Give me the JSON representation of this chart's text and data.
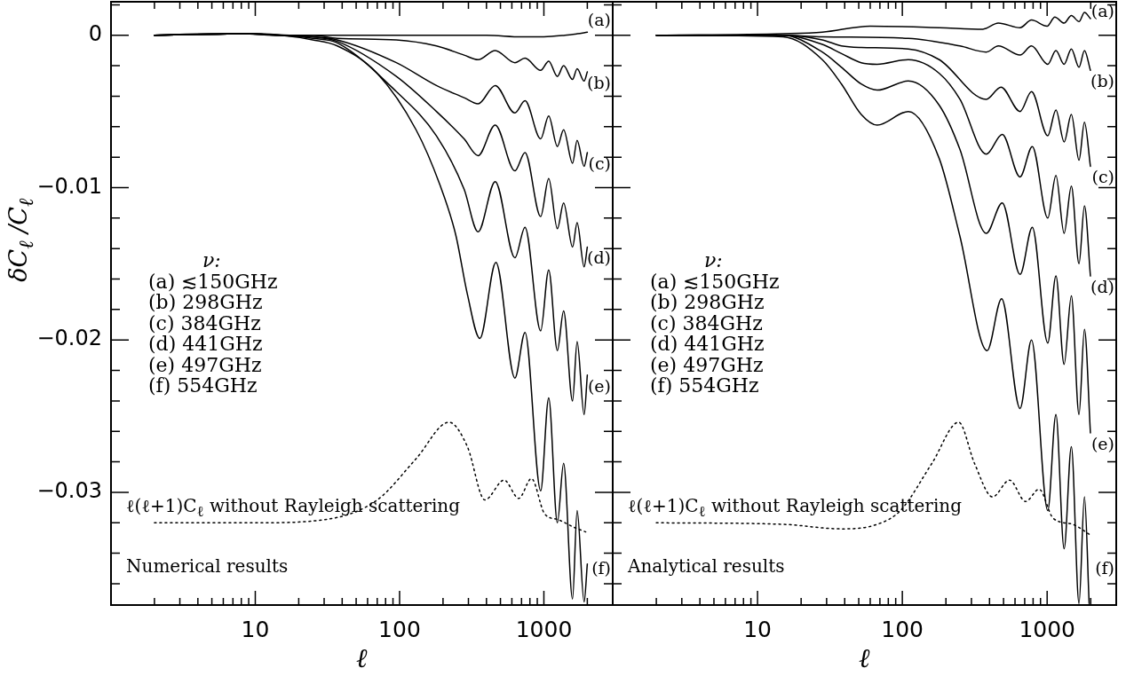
{
  "chart_data": [
    {
      "type": "line",
      "xlabel": "ℓ",
      "ylabel": "δC$_{ℓ}$ /C$_{ℓ}$",
      "legend": "right",
      "log": "x",
      "grid": false,
      "marker": "none",
      "xlim": [
        1,
        3000
      ],
      "ylim": [
        -0.0374,
        0.0022
      ],
      "xticks": [
        {
          "value": 2,
          "label": null
        },
        {
          "value": 3,
          "label": null
        },
        {
          "value": 4,
          "label": null
        },
        {
          "value": 5,
          "label": null
        },
        {
          "value": 6,
          "label": null
        },
        {
          "value": 7,
          "label": null
        },
        {
          "value": 8,
          "label": null
        },
        {
          "value": 9,
          "label": null
        },
        10,
        {
          "value": 20,
          "label": null
        },
        {
          "value": 30,
          "label": null
        },
        {
          "value": 40,
          "label": null
        },
        {
          "value": 50,
          "label": null
        },
        {
          "value": 60,
          "label": null
        },
        {
          "value": 70,
          "label": null
        },
        {
          "value": 80,
          "label": null
        },
        {
          "value": 90,
          "label": null
        },
        100,
        {
          "value": 200,
          "label": null
        },
        {
          "value": 300,
          "label": null
        },
        {
          "value": 400,
          "label": null
        },
        {
          "value": 500,
          "label": null
        },
        {
          "value": 600,
          "label": null
        },
        {
          "value": 700,
          "label": null
        },
        {
          "value": 800,
          "label": null
        },
        {
          "value": 900,
          "label": null
        },
        1000,
        {
          "value": 2000,
          "label": null
        },
        {
          "value": 3000,
          "label": null
        }
      ],
      "yticks": [
        {
          "value": 0.002,
          "label": null
        },
        0,
        {
          "value": -0.002,
          "label": null
        },
        {
          "value": -0.004,
          "label": null
        },
        {
          "value": -0.006,
          "label": null
        },
        {
          "value": -0.008,
          "label": null
        },
        -0.01,
        {
          "value": -0.012,
          "label": null
        },
        {
          "value": -0.014,
          "label": null
        },
        {
          "value": -0.016,
          "label": null
        },
        {
          "value": -0.018,
          "label": null
        },
        -0.02,
        {
          "value": -0.022,
          "label": null
        },
        {
          "value": -0.024,
          "label": null
        },
        {
          "value": -0.026,
          "label": null
        },
        {
          "value": -0.028,
          "label": null
        },
        -0.03,
        {
          "value": -0.032,
          "label": null
        },
        {
          "value": -0.034,
          "label": null
        },
        {
          "value": -0.036,
          "label": null
        }
      ],
      "series": [
        {
          "name": "(a)",
          "color": "#000000",
          "x": [
            2,
            5,
            10,
            20,
            50,
            100,
            200,
            400,
            700,
            1000,
            1400,
            1700,
            2000
          ],
          "values": [
            0,
            0.0001,
            0.0001,
            0,
            0,
            0,
            0,
            0,
            -0.0001,
            -0.0001,
            0,
            0.0001,
            0.0002
          ]
        },
        {
          "name": "(b)",
          "color": "#000000",
          "x": [
            2,
            8,
            15,
            25,
            37,
            95,
            180,
            280,
            350,
            460,
            630,
            740,
            950,
            1080,
            1240,
            1370,
            1580,
            1700,
            1900,
            2000
          ],
          "values": [
            0,
            0.0001,
            0,
            0,
            -0.0002,
            -0.0003,
            -0.0007,
            -0.0013,
            -0.0016,
            -0.001,
            -0.0018,
            -0.0015,
            -0.0023,
            -0.0017,
            -0.0027,
            -0.002,
            -0.0029,
            -0.0022,
            -0.003,
            -0.0024
          ]
        },
        {
          "name": "(c)",
          "color": "#000000",
          "x": [
            2,
            8,
            15,
            25,
            37,
            95,
            180,
            280,
            350,
            460,
            630,
            740,
            950,
            1080,
            1240,
            1370,
            1580,
            1700,
            1900,
            2000
          ],
          "values": [
            0,
            0.0001,
            0,
            -0.0001,
            -0.0003,
            -0.0018,
            -0.0033,
            -0.0041,
            -0.0045,
            -0.0033,
            -0.0051,
            -0.0043,
            -0.0068,
            -0.0053,
            -0.0073,
            -0.0062,
            -0.0084,
            -0.0069,
            -0.0086,
            -0.0077
          ]
        },
        {
          "name": "(d)",
          "color": "#000000",
          "x": [
            2,
            8,
            15,
            25,
            37,
            95,
            180,
            280,
            350,
            460,
            630,
            740,
            950,
            1080,
            1240,
            1370,
            1580,
            1700,
            1900,
            2000
          ],
          "values": [
            0,
            0.0001,
            0,
            -0.0001,
            -0.0004,
            -0.0027,
            -0.005,
            -0.0068,
            -0.0079,
            -0.0059,
            -0.0089,
            -0.0077,
            -0.0119,
            -0.0094,
            -0.0127,
            -0.011,
            -0.0139,
            -0.0123,
            -0.0152,
            -0.0139
          ]
        },
        {
          "name": "(e)",
          "color": "#000000",
          "x": [
            2,
            8,
            15,
            25,
            37,
            95,
            180,
            280,
            350,
            460,
            630,
            740,
            950,
            1080,
            1240,
            1370,
            1580,
            1700,
            1900,
            2000
          ],
          "values": [
            0,
            0.0001,
            0,
            -0.0002,
            -0.0005,
            -0.0037,
            -0.0066,
            -0.0101,
            -0.0129,
            -0.0096,
            -0.0146,
            -0.0126,
            -0.0194,
            -0.0154,
            -0.0207,
            -0.0181,
            -0.024,
            -0.0201,
            -0.0249,
            -0.0223
          ]
        },
        {
          "name": "(f)",
          "color": "#000000",
          "x": [
            2,
            8,
            15,
            25,
            37,
            70,
            130,
            190,
            245,
            295,
            360,
            465,
            630,
            740,
            950,
            1080,
            1240,
            1370,
            1580,
            1700,
            1900,
            2000
          ],
          "values": [
            0,
            0.0001,
            0,
            -0.0003,
            -0.0007,
            -0.0025,
            -0.0062,
            -0.0098,
            -0.0131,
            -0.017,
            -0.0199,
            -0.0149,
            -0.0225,
            -0.0195,
            -0.0299,
            -0.0238,
            -0.032,
            -0.0281,
            -0.037,
            -0.0312,
            -0.0372,
            -0.0347
          ]
        },
        {
          "color": "#000000",
          "line_style": "dotted",
          "x": [
            2,
            10,
            30,
            70,
            130,
            220,
            295,
            390,
            530,
            670,
            820,
            1010,
            1260,
            1620,
            1950
          ],
          "values": [
            -0.032,
            -0.032,
            -0.0318,
            -0.0305,
            -0.0278,
            -0.0254,
            -0.027,
            -0.0305,
            -0.0292,
            -0.0304,
            -0.0291,
            -0.0314,
            -0.0318,
            -0.0323,
            -0.0326
          ]
        }
      ],
      "annotations": [
        "ν:",
        "(a) ≲150GHz",
        "(b) 298GHz",
        "(c) 384GHz",
        "(d) 441GHz",
        "(e) 497GHz",
        "(f) 554GHz",
        "ℓ(ℓ+1)C$_{ℓ}$ without Rayleigh scattering",
        "Numerical results"
      ]
    },
    {
      "type": "line",
      "xlabel": "ℓ",
      "legend": "right",
      "log": "x",
      "grid": false,
      "marker": "none",
      "tick_labels": "x",
      "xlim": [
        1,
        3000
      ],
      "ylim": [
        -0.0374,
        0.0022
      ],
      "xticks": [
        {
          "value": 2,
          "label": null
        },
        {
          "value": 3,
          "label": null
        },
        {
          "value": 4,
          "label": null
        },
        {
          "value": 5,
          "label": null
        },
        {
          "value": 6,
          "label": null
        },
        {
          "value": 7,
          "label": null
        },
        {
          "value": 8,
          "label": null
        },
        {
          "value": 9,
          "label": null
        },
        10,
        {
          "value": 20,
          "label": null
        },
        {
          "value": 30,
          "label": null
        },
        {
          "value": 40,
          "label": null
        },
        {
          "value": 50,
          "label": null
        },
        {
          "value": 60,
          "label": null
        },
        {
          "value": 70,
          "label": null
        },
        {
          "value": 80,
          "label": null
        },
        {
          "value": 90,
          "label": null
        },
        100,
        {
          "value": 200,
          "label": null
        },
        {
          "value": 300,
          "label": null
        },
        {
          "value": 400,
          "label": null
        },
        {
          "value": 500,
          "label": null
        },
        {
          "value": 600,
          "label": null
        },
        {
          "value": 700,
          "label": null
        },
        {
          "value": 800,
          "label": null
        },
        {
          "value": 900,
          "label": null
        },
        1000,
        {
          "value": 2000,
          "label": null
        },
        {
          "value": 3000,
          "label": null
        }
      ],
      "yticks": [
        {
          "value": 0.002,
          "label": null
        },
        0,
        {
          "value": -0.002,
          "label": null
        },
        {
          "value": -0.004,
          "label": null
        },
        {
          "value": -0.006,
          "label": null
        },
        {
          "value": -0.008,
          "label": null
        },
        -0.01,
        {
          "value": -0.012,
          "label": null
        },
        {
          "value": -0.014,
          "label": null
        },
        {
          "value": -0.016,
          "label": null
        },
        {
          "value": -0.018,
          "label": null
        },
        -0.02,
        {
          "value": -0.022,
          "label": null
        },
        {
          "value": -0.024,
          "label": null
        },
        {
          "value": -0.026,
          "label": null
        },
        {
          "value": -0.028,
          "label": null
        },
        -0.03,
        {
          "value": -0.032,
          "label": null
        },
        {
          "value": -0.034,
          "label": null
        },
        {
          "value": -0.036,
          "label": null
        }
      ],
      "series": [
        {
          "name": "(a)",
          "color": "#000000",
          "x": [
            2,
            15,
            28,
            60,
            180,
            360,
            460,
            650,
            780,
            1000,
            1130,
            1310,
            1470,
            1660,
            1810,
            1990
          ],
          "values": [
            0,
            0.0001,
            0.0002,
            0.0006,
            0.0005,
            0.0004,
            0.0008,
            0.0005,
            0.001,
            0.0006,
            0.0012,
            0.0008,
            0.0013,
            0.0009,
            0.0015,
            0.0011
          ]
        },
        {
          "name": "(b)",
          "color": "#000000",
          "x": [
            2,
            15,
            28,
            110,
            250,
            380,
            460,
            650,
            780,
            1010,
            1150,
            1310,
            1470,
            1660,
            1810,
            1990
          ],
          "values": [
            0,
            0,
            -0.0001,
            -0.0002,
            -0.0007,
            -0.0011,
            -0.0007,
            -0.0013,
            -0.0007,
            -0.0019,
            -0.001,
            -0.0019,
            -0.0009,
            -0.0021,
            -0.001,
            -0.0023
          ]
        },
        {
          "name": "(c)",
          "color": "#000000",
          "x": [
            2,
            15,
            28,
            38,
            52,
            110,
            180,
            380,
            480,
            650,
            780,
            1010,
            1150,
            1310,
            1470,
            1660,
            1810,
            1990
          ],
          "values": [
            0,
            0,
            -0.0003,
            -0.0007,
            -0.0008,
            -0.0009,
            -0.0016,
            -0.0042,
            -0.0034,
            -0.005,
            -0.0037,
            -0.0066,
            -0.0049,
            -0.007,
            -0.0052,
            -0.0082,
            -0.0057,
            -0.0086
          ]
        },
        {
          "name": "(d)",
          "color": "#000000",
          "x": [
            2,
            15,
            28,
            38,
            52,
            67,
            110,
            180,
            250,
            380,
            490,
            650,
            790,
            1010,
            1150,
            1310,
            1470,
            1660,
            1810,
            1990
          ],
          "values": [
            0,
            0,
            -0.0006,
            -0.0012,
            -0.0018,
            -0.0019,
            -0.0016,
            -0.0025,
            -0.0042,
            -0.0078,
            -0.0065,
            -0.0093,
            -0.0073,
            -0.012,
            -0.0092,
            -0.013,
            -0.0099,
            -0.015,
            -0.0112,
            -0.0158
          ]
        },
        {
          "name": "(e)",
          "color": "#000000",
          "x": [
            2,
            15,
            28,
            38,
            52,
            67,
            110,
            180,
            250,
            380,
            490,
            650,
            790,
            1010,
            1150,
            1310,
            1470,
            1660,
            1810,
            1990
          ],
          "values": [
            0,
            0,
            -0.0011,
            -0.0021,
            -0.0032,
            -0.0036,
            -0.003,
            -0.0046,
            -0.0075,
            -0.013,
            -0.011,
            -0.0157,
            -0.0126,
            -0.0202,
            -0.0158,
            -0.0216,
            -0.0171,
            -0.0249,
            -0.0193,
            -0.0261
          ]
        },
        {
          "name": "(f)",
          "color": "#000000",
          "x": [
            2,
            15,
            28,
            38,
            52,
            67,
            110,
            180,
            250,
            385,
            485,
            650,
            780,
            1010,
            1150,
            1310,
            1470,
            1660,
            1810,
            1950
          ],
          "values": [
            0,
            -0.0001,
            -0.0016,
            -0.0032,
            -0.0052,
            -0.0059,
            -0.005,
            -0.0081,
            -0.0132,
            -0.0207,
            -0.0173,
            -0.0245,
            -0.02,
            -0.0312,
            -0.0249,
            -0.0337,
            -0.027,
            -0.0373,
            -0.0303,
            -0.0373
          ]
        },
        {
          "color": "#000000",
          "line_style": "dotted",
          "x": [
            2,
            15,
            38,
            67,
            97,
            160,
            245,
            315,
            420,
            550,
            710,
            880,
            1100,
            1500,
            1990
          ],
          "values": [
            -0.032,
            -0.0321,
            -0.0324,
            -0.0321,
            -0.0312,
            -0.0281,
            -0.0254,
            -0.0281,
            -0.0303,
            -0.0292,
            -0.0306,
            -0.0298,
            -0.0317,
            -0.0321,
            -0.0328
          ]
        }
      ],
      "annotations": [
        "ν:",
        "(a) ≲150GHz",
        "(b) 298GHz",
        "(c) 384GHz",
        "(d) 441GHz",
        "(e) 497GHz",
        "(f) 554GHz",
        "ℓ(ℓ+1)C$_{ℓ}$ without Rayleigh scattering",
        "Analytical results"
      ]
    }
  ]
}
